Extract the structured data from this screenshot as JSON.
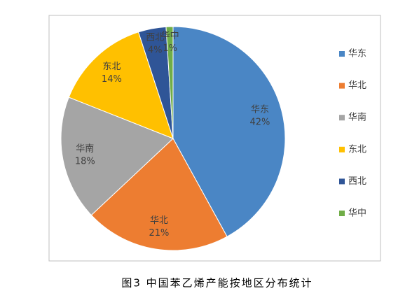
{
  "chart_data": {
    "type": "pie",
    "title": "图3 中国苯乙烯产能按地区分布统计",
    "categories": [
      "华东",
      "华北",
      "华南",
      "东北",
      "西北",
      "华中"
    ],
    "values": [
      42,
      21,
      18,
      14,
      4,
      1
    ],
    "value_labels": [
      "42%",
      "21%",
      "18%",
      "14%",
      "4%",
      "1%"
    ],
    "colors": [
      "#4a86c5",
      "#ed7d31",
      "#a5a5a5",
      "#ffc000",
      "#2f5597",
      "#70ad47"
    ],
    "legend": "right"
  }
}
